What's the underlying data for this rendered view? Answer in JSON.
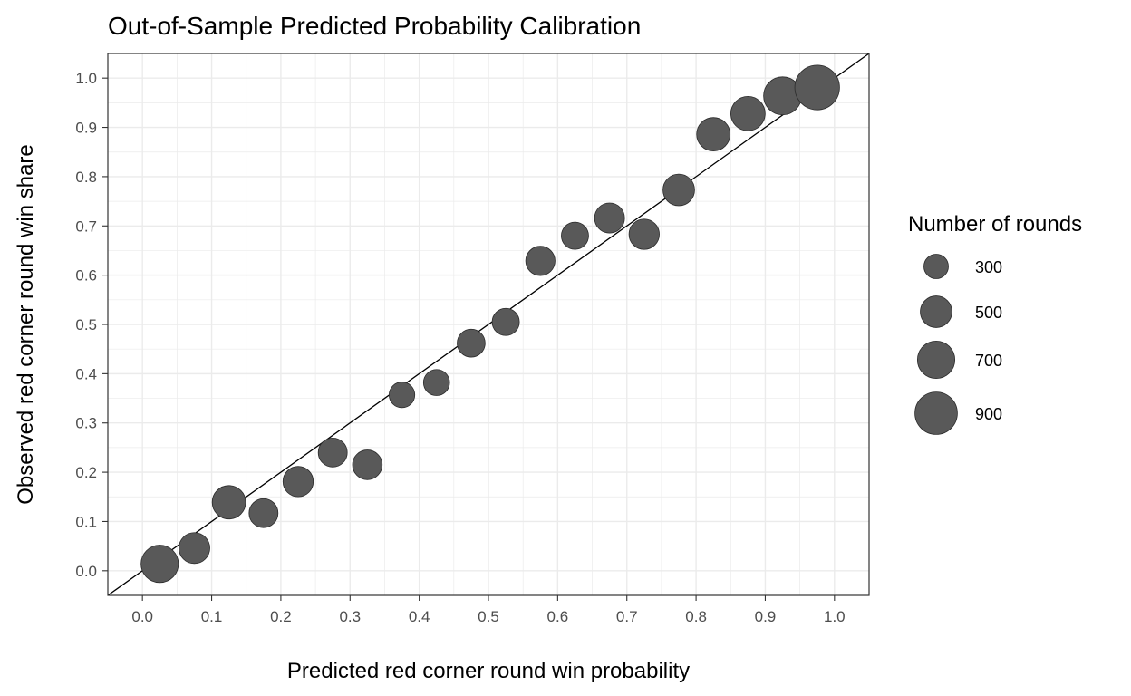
{
  "chart_data": {
    "type": "scatter",
    "title": "Out-of-Sample Predicted Probability Calibration",
    "xlabel": "Predicted red corner round win probability",
    "ylabel": "Observed red corner round win share",
    "xlim": [
      -0.05,
      1.05
    ],
    "ylim": [
      -0.05,
      1.05
    ],
    "x_ticks": [
      "0.0",
      "0.1",
      "0.2",
      "0.3",
      "0.4",
      "0.5",
      "0.6",
      "0.7",
      "0.8",
      "0.9",
      "1.0"
    ],
    "y_ticks": [
      "0.0",
      "0.1",
      "0.2",
      "0.3",
      "0.4",
      "0.5",
      "0.6",
      "0.7",
      "0.8",
      "0.9",
      "1.0"
    ],
    "grid": true,
    "reference_line": {
      "type": "identity",
      "slope": 1,
      "intercept": 0
    },
    "point_color": "#595959",
    "points": [
      {
        "x": 0.025,
        "y": 0.014,
        "n": 700
      },
      {
        "x": 0.075,
        "y": 0.046,
        "n": 480
      },
      {
        "x": 0.125,
        "y": 0.139,
        "n": 560
      },
      {
        "x": 0.175,
        "y": 0.117,
        "n": 420
      },
      {
        "x": 0.225,
        "y": 0.181,
        "n": 460
      },
      {
        "x": 0.275,
        "y": 0.24,
        "n": 420
      },
      {
        "x": 0.325,
        "y": 0.215,
        "n": 440
      },
      {
        "x": 0.375,
        "y": 0.357,
        "n": 330
      },
      {
        "x": 0.425,
        "y": 0.382,
        "n": 340
      },
      {
        "x": 0.475,
        "y": 0.462,
        "n": 390
      },
      {
        "x": 0.525,
        "y": 0.505,
        "n": 370
      },
      {
        "x": 0.575,
        "y": 0.629,
        "n": 430
      },
      {
        "x": 0.625,
        "y": 0.68,
        "n": 370
      },
      {
        "x": 0.675,
        "y": 0.716,
        "n": 450
      },
      {
        "x": 0.725,
        "y": 0.683,
        "n": 460
      },
      {
        "x": 0.775,
        "y": 0.773,
        "n": 500
      },
      {
        "x": 0.825,
        "y": 0.886,
        "n": 560
      },
      {
        "x": 0.875,
        "y": 0.928,
        "n": 590
      },
      {
        "x": 0.925,
        "y": 0.964,
        "n": 720
      },
      {
        "x": 0.975,
        "y": 0.981,
        "n": 1000
      }
    ],
    "legend": {
      "title": "Number of rounds",
      "position": "right",
      "entries": [
        {
          "label": "300",
          "n": 300
        },
        {
          "label": "500",
          "n": 500
        },
        {
          "label": "700",
          "n": 700
        },
        {
          "label": "900",
          "n": 900
        }
      ]
    }
  }
}
